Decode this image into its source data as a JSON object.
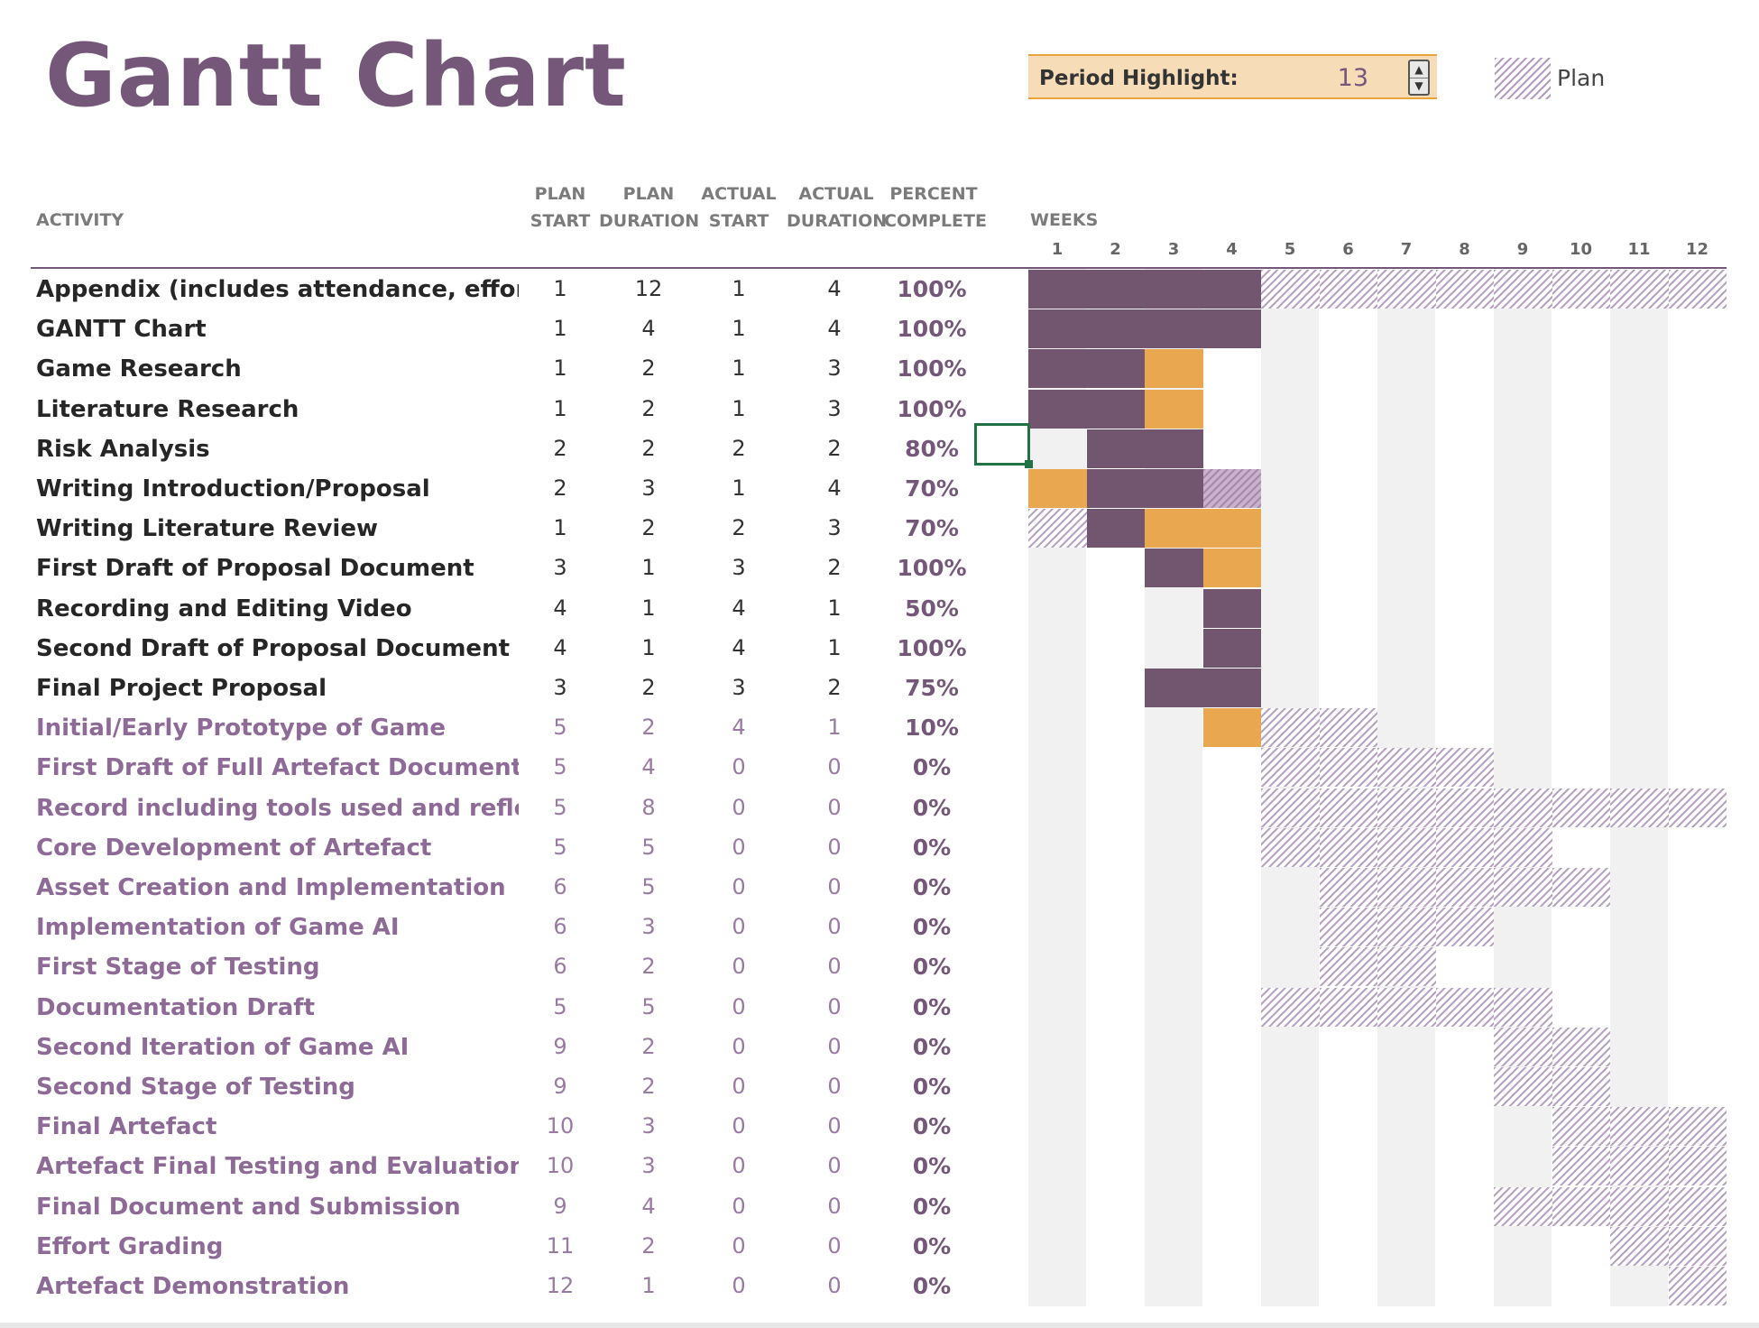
{
  "title": "Gantt Chart",
  "period_highlight": {
    "label": "Period Highlight:",
    "value": "13"
  },
  "legend": {
    "plan_label": "Plan"
  },
  "headers": {
    "activity": "ACTIVITY",
    "plan_start": [
      "PLAN",
      "START"
    ],
    "plan_duration": [
      "PLAN",
      "DURATION"
    ],
    "actual_start": [
      "ACTUAL",
      "START"
    ],
    "actual_duration": [
      "ACTUAL",
      "DURATION"
    ],
    "percent_complete": [
      "PERCENT",
      "COMPLETE"
    ],
    "weeks": "WEEKS",
    "week_numbers": [
      "1",
      "2",
      "3",
      "4",
      "5",
      "6",
      "7",
      "8",
      "9",
      "10",
      "11",
      "12"
    ]
  },
  "colors": {
    "title": "#75577a",
    "actual": "#72566f",
    "beyond_plan": "#e9a84f",
    "plan_hatch": "#b9a3c2",
    "period_highlight_bg": "#f7dcb8"
  },
  "rows": [
    {
      "activity": "Appendix (includes attendance, effort)",
      "plan_start": "1",
      "plan_duration": "12",
      "actual_start": "1",
      "actual_duration": "4",
      "percent": "100%",
      "style": "dark"
    },
    {
      "activity": "GANTT Chart",
      "plan_start": "1",
      "plan_duration": "4",
      "actual_start": "1",
      "actual_duration": "4",
      "percent": "100%",
      "style": "dark"
    },
    {
      "activity": "Game Research",
      "plan_start": "1",
      "plan_duration": "2",
      "actual_start": "1",
      "actual_duration": "3",
      "percent": "100%",
      "style": "dark"
    },
    {
      "activity": "Literature Research",
      "plan_start": "1",
      "plan_duration": "2",
      "actual_start": "1",
      "actual_duration": "3",
      "percent": "100%",
      "style": "dark"
    },
    {
      "activity": "Risk Analysis",
      "plan_start": "2",
      "plan_duration": "2",
      "actual_start": "2",
      "actual_duration": "2",
      "percent": "80%",
      "style": "dark"
    },
    {
      "activity": "Writing Introduction/Proposal",
      "plan_start": "2",
      "plan_duration": "3",
      "actual_start": "1",
      "actual_duration": "4",
      "percent": "70%",
      "style": "dark"
    },
    {
      "activity": "Writing Literature Review",
      "plan_start": "1",
      "plan_duration": "2",
      "actual_start": "2",
      "actual_duration": "3",
      "percent": "70%",
      "style": "dark"
    },
    {
      "activity": "First Draft of Proposal Document",
      "plan_start": "3",
      "plan_duration": "1",
      "actual_start": "3",
      "actual_duration": "2",
      "percent": "100%",
      "style": "dark"
    },
    {
      "activity": "Recording and Editing Video",
      "plan_start": "4",
      "plan_duration": "1",
      "actual_start": "4",
      "actual_duration": "1",
      "percent": "50%",
      "style": "dark"
    },
    {
      "activity": "Second Draft of Proposal Document",
      "plan_start": "4",
      "plan_duration": "1",
      "actual_start": "4",
      "actual_duration": "1",
      "percent": "100%",
      "style": "dark"
    },
    {
      "activity": "Final Project Proposal",
      "plan_start": "3",
      "plan_duration": "2",
      "actual_start": "3",
      "actual_duration": "2",
      "percent": "75%",
      "style": "dark"
    },
    {
      "activity": "Initial/Early Prototype of Game",
      "plan_start": "5",
      "plan_duration": "2",
      "actual_start": "4",
      "actual_duration": "1",
      "percent": "10%",
      "style": "light"
    },
    {
      "activity": "First Draft of Full Artefact Documentation",
      "plan_start": "5",
      "plan_duration": "4",
      "actual_start": "0",
      "actual_duration": "0",
      "percent": "0%",
      "style": "light"
    },
    {
      "activity": "Record including tools used and reflections",
      "plan_start": "5",
      "plan_duration": "8",
      "actual_start": "0",
      "actual_duration": "0",
      "percent": "0%",
      "style": "light"
    },
    {
      "activity": "Core Development of Artefact",
      "plan_start": "5",
      "plan_duration": "5",
      "actual_start": "0",
      "actual_duration": "0",
      "percent": "0%",
      "style": "light"
    },
    {
      "activity": "Asset Creation and Implementation",
      "plan_start": "6",
      "plan_duration": "5",
      "actual_start": "0",
      "actual_duration": "0",
      "percent": "0%",
      "style": "light"
    },
    {
      "activity": "Implementation of Game AI",
      "plan_start": "6",
      "plan_duration": "3",
      "actual_start": "0",
      "actual_duration": "0",
      "percent": "0%",
      "style": "light"
    },
    {
      "activity": "First Stage of Testing",
      "plan_start": "6",
      "plan_duration": "2",
      "actual_start": "0",
      "actual_duration": "0",
      "percent": "0%",
      "style": "light"
    },
    {
      "activity": "Documentation Draft",
      "plan_start": "5",
      "plan_duration": "5",
      "actual_start": "0",
      "actual_duration": "0",
      "percent": "0%",
      "style": "light"
    },
    {
      "activity": "Second Iteration of Game AI",
      "plan_start": "9",
      "plan_duration": "2",
      "actual_start": "0",
      "actual_duration": "0",
      "percent": "0%",
      "style": "light"
    },
    {
      "activity": "Second Stage of Testing",
      "plan_start": "9",
      "plan_duration": "2",
      "actual_start": "0",
      "actual_duration": "0",
      "percent": "0%",
      "style": "light"
    },
    {
      "activity": "Final Artefact",
      "plan_start": "10",
      "plan_duration": "3",
      "actual_start": "0",
      "actual_duration": "0",
      "percent": "0%",
      "style": "light"
    },
    {
      "activity": "Artefact Final Testing and Evaluation",
      "plan_start": "10",
      "plan_duration": "3",
      "actual_start": "0",
      "actual_duration": "0",
      "percent": "0%",
      "style": "light"
    },
    {
      "activity": "Final Document and Submission",
      "plan_start": "9",
      "plan_duration": "4",
      "actual_start": "0",
      "actual_duration": "0",
      "percent": "0%",
      "style": "light"
    },
    {
      "activity": "Effort Grading",
      "plan_start": "11",
      "plan_duration": "2",
      "actual_start": "0",
      "actual_duration": "0",
      "percent": "0%",
      "style": "light"
    },
    {
      "activity": "Artefact Demonstration",
      "plan_start": "12",
      "plan_duration": "1",
      "actual_start": "0",
      "actual_duration": "0",
      "percent": "0%",
      "style": "light"
    }
  ]
}
